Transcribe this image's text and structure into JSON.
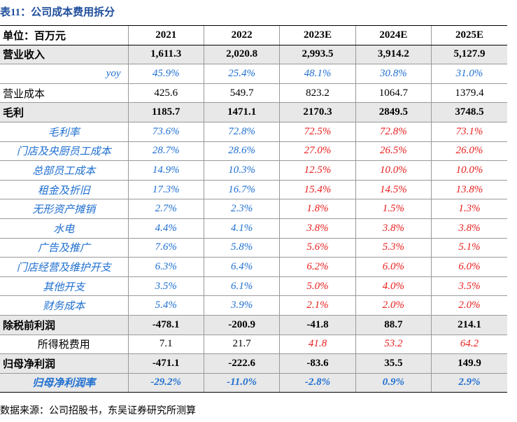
{
  "title": "表11：公司成本费用拆分",
  "table": {
    "header": [
      "单位：百万元",
      "2021",
      "2022",
      "2023E",
      "2024E",
      "2025E"
    ],
    "rows": [
      {
        "label": "营业收入",
        "values": [
          "1,611.3",
          "2,020.8",
          "2,993.5",
          "3,914.2",
          "5,127.9"
        ]
      },
      {
        "label": "yoy",
        "values": [
          "45.9%",
          "25.4%",
          "48.1%",
          "30.8%",
          "31.0%"
        ]
      },
      {
        "label": "营业成本",
        "values": [
          "425.6",
          "549.7",
          "823.2",
          "1064.7",
          "1379.4"
        ]
      },
      {
        "label": "毛利",
        "values": [
          "1185.7",
          "1471.1",
          "2170.3",
          "2849.5",
          "3748.5"
        ]
      },
      {
        "label": "毛利率",
        "values": [
          "73.6%",
          "72.8%",
          "72.5%",
          "72.8%",
          "73.1%"
        ]
      },
      {
        "label": "门店及央厨员工成本",
        "values": [
          "28.7%",
          "28.6%",
          "27.0%",
          "26.5%",
          "26.0%"
        ]
      },
      {
        "label": "总部员工成本",
        "values": [
          "14.9%",
          "10.3%",
          "12.5%",
          "10.0%",
          "10.0%"
        ]
      },
      {
        "label": "租金及折旧",
        "values": [
          "17.3%",
          "16.7%",
          "15.4%",
          "14.5%",
          "13.8%"
        ]
      },
      {
        "label": "无形资产摊销",
        "values": [
          "2.7%",
          "2.3%",
          "1.8%",
          "1.5%",
          "1.3%"
        ]
      },
      {
        "label": "水电",
        "values": [
          "4.4%",
          "4.1%",
          "3.8%",
          "3.8%",
          "3.8%"
        ]
      },
      {
        "label": "广告及推广",
        "values": [
          "7.6%",
          "5.8%",
          "5.6%",
          "5.3%",
          "5.1%"
        ]
      },
      {
        "label": "门店经营及维护开支",
        "values": [
          "6.3%",
          "6.4%",
          "6.2%",
          "6.0%",
          "6.0%"
        ]
      },
      {
        "label": "其他开支",
        "values": [
          "3.5%",
          "6.1%",
          "5.0%",
          "4.0%",
          "3.5%"
        ]
      },
      {
        "label": "财务成本",
        "values": [
          "5.4%",
          "3.9%",
          "2.1%",
          "2.0%",
          "2.0%"
        ]
      },
      {
        "label": "除税前利润",
        "values": [
          "-478.1",
          "-200.9",
          "-41.8",
          "88.7",
          "214.1"
        ]
      },
      {
        "label": "所得税费用",
        "values": [
          "7.1",
          "21.7",
          "41.8",
          "53.2",
          "64.2"
        ]
      },
      {
        "label": "归母净利润",
        "values": [
          "-471.1",
          "-222.6",
          "-83.6",
          "35.5",
          "149.9"
        ]
      },
      {
        "label": "归母净利润率",
        "values": [
          "-29.2%",
          "-11.0%",
          "-2.8%",
          "0.9%",
          "2.9%"
        ]
      }
    ]
  },
  "source": "数据来源：公司招股书，东吴证券研究所测算"
}
